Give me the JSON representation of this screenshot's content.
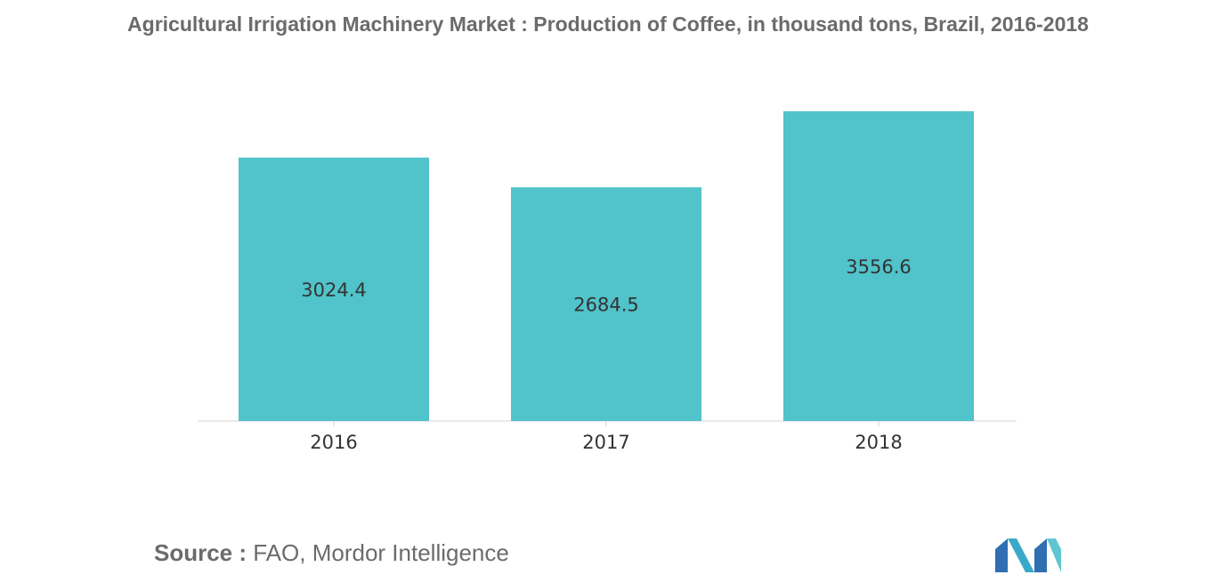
{
  "title": "Agricultural Irrigation Machinery Market : Production of Coffee, in thousand tons, Brazil, 2016-2018",
  "source": {
    "label": "Source :",
    "text": "FAO, Mordor Intelligence"
  },
  "colors": {
    "bar": "#51c3ca",
    "text": "#6b6b6b",
    "axis": "#d4d4d4"
  },
  "logo": {
    "icon": "mordor-intelligence-logo-icon"
  },
  "chart_data": {
    "type": "bar",
    "categories": [
      "2016",
      "2017",
      "2018"
    ],
    "values": [
      3024.4,
      2684.5,
      3556.6
    ],
    "data_labels": [
      "3024.4",
      "2684.5",
      "3556.6"
    ],
    "title": "Agricultural Irrigation Machinery Market : Production of Coffee, in thousand tons, Brazil, 2016-2018",
    "xlabel": "",
    "ylabel": "",
    "ylim": [
      0,
      3556.6
    ],
    "grid": false,
    "legend": "none"
  }
}
